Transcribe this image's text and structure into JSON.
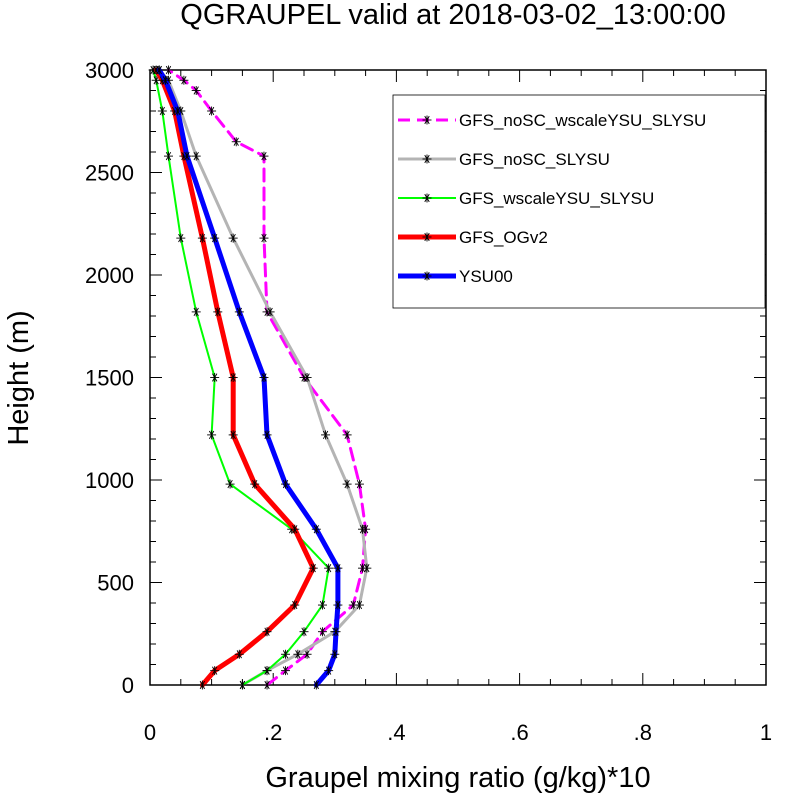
{
  "chart_data": {
    "type": "line",
    "title": "QGRAUPEL valid at 2018-03-02_13:00:00",
    "xlabel": "Graupel mixing ratio (g/kg)*10",
    "ylabel": "Height (m)",
    "xlim": [
      0,
      1
    ],
    "ylim": [
      0,
      3000
    ],
    "x_ticks": [
      0,
      0.2,
      0.4,
      0.6,
      0.8,
      1
    ],
    "x_tick_labels": [
      "0",
      ".2",
      ".4",
      ".6",
      ".8",
      "1"
    ],
    "y_ticks": [
      0,
      500,
      1000,
      1500,
      2000,
      2500,
      3000
    ],
    "y_tick_labels": [
      "0",
      "500",
      "1000",
      "1500",
      "2000",
      "2500",
      "3000"
    ],
    "grid": false,
    "legend_position": "top-right",
    "series": [
      {
        "name": "GFS_noSC_wscaleYSU_SLYSU",
        "color": "#ff00ff",
        "dash": "dashed",
        "width": 3,
        "x": [
          0.19,
          0.22,
          0.255,
          0.28,
          0.33,
          0.345,
          0.35,
          0.34,
          0.32,
          0.25,
          0.19,
          0.185,
          0.185,
          0.14,
          0.1,
          0.075,
          0.055,
          0.03
        ],
        "y": [
          0,
          70,
          150,
          260,
          390,
          570,
          760,
          980,
          1220,
          1500,
          1820,
          2180,
          2580,
          2650,
          2800,
          2900,
          2950,
          3000
        ]
      },
      {
        "name": "GFS_noSC_SLYSU",
        "color": "#b4b4b4",
        "dash": "solid",
        "width": 3,
        "x": [
          0.15,
          0.19,
          0.24,
          0.3,
          0.34,
          0.352,
          0.345,
          0.32,
          0.285,
          0.255,
          0.195,
          0.135,
          0.075,
          0.05,
          0.03,
          0.015
        ],
        "y": [
          0,
          70,
          150,
          260,
          390,
          570,
          760,
          980,
          1220,
          1500,
          1820,
          2180,
          2580,
          2800,
          2950,
          3000
        ]
      },
      {
        "name": "GFS_wscaleYSU_SLYSU",
        "color": "#00ff00",
        "dash": "solid",
        "width": 2,
        "x": [
          0.15,
          0.19,
          0.22,
          0.25,
          0.28,
          0.29,
          0.23,
          0.13,
          0.1,
          0.105,
          0.075,
          0.05,
          0.03,
          0.02,
          0.01,
          0.005
        ],
        "y": [
          0,
          70,
          150,
          260,
          390,
          570,
          760,
          980,
          1220,
          1500,
          1820,
          2180,
          2580,
          2800,
          2950,
          3000
        ]
      },
      {
        "name": "GFS_OGv2",
        "color": "#ff0000",
        "dash": "solid",
        "width": 5,
        "x": [
          0.085,
          0.105,
          0.145,
          0.19,
          0.235,
          0.265,
          0.235,
          0.17,
          0.135,
          0.135,
          0.11,
          0.085,
          0.055,
          0.04,
          0.02,
          0.01
        ],
        "y": [
          0,
          70,
          150,
          260,
          390,
          570,
          760,
          980,
          1220,
          1500,
          1820,
          2180,
          2580,
          2800,
          2950,
          3000
        ]
      },
      {
        "name": "YSU00",
        "color": "#0000ff",
        "dash": "solid",
        "width": 5,
        "x": [
          0.27,
          0.29,
          0.3,
          0.302,
          0.305,
          0.305,
          0.27,
          0.22,
          0.19,
          0.185,
          0.145,
          0.105,
          0.06,
          0.045,
          0.025,
          0.015
        ],
        "y": [
          0,
          70,
          150,
          260,
          390,
          570,
          760,
          980,
          1220,
          1500,
          1820,
          2180,
          2580,
          2800,
          2950,
          3000
        ]
      }
    ]
  }
}
